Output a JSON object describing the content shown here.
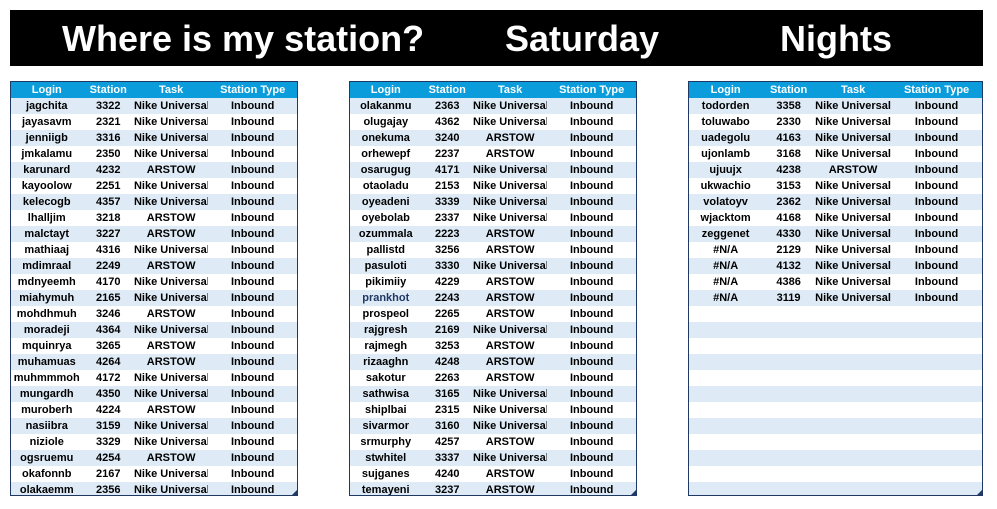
{
  "banner": {
    "title": "Where is my station?",
    "day": "Saturday",
    "shift": "Nights"
  },
  "columns": {
    "login": "Login",
    "station": "Station",
    "task": "Task",
    "type": "Station Type"
  },
  "tables": [
    {
      "rows": [
        [
          "jagchita",
          "3322",
          "Nike Universal",
          "Inbound"
        ],
        [
          "jayasavm",
          "2321",
          "Nike Universal",
          "Inbound"
        ],
        [
          "jenniigb",
          "3316",
          "Nike Universal",
          "Inbound"
        ],
        [
          "jmkalamu",
          "2350",
          "Nike Universal",
          "Inbound"
        ],
        [
          "karunard",
          "4232",
          "ARSTOW",
          "Inbound"
        ],
        [
          "kayoolow",
          "2251",
          "Nike Universal",
          "Inbound"
        ],
        [
          "kelecogb",
          "4357",
          "Nike Universal",
          "Inbound"
        ],
        [
          "lhalljim",
          "3218",
          "ARSTOW",
          "Inbound"
        ],
        [
          "malctayt",
          "3227",
          "ARSTOW",
          "Inbound"
        ],
        [
          "mathiaaj",
          "4316",
          "Nike Universal",
          "Inbound"
        ],
        [
          "mdimraal",
          "2249",
          "ARSTOW",
          "Inbound"
        ],
        [
          "mdnyeemh",
          "4170",
          "Nike Universal",
          "Inbound"
        ],
        [
          "miahymuh",
          "2165",
          "Nike Universal",
          "Inbound"
        ],
        [
          "mohdhmuh",
          "3246",
          "ARSTOW",
          "Inbound"
        ],
        [
          "moradeji",
          "4364",
          "Nike Universal",
          "Inbound"
        ],
        [
          "mquinrya",
          "3265",
          "ARSTOW",
          "Inbound"
        ],
        [
          "muhamuas",
          "4264",
          "ARSTOW",
          "Inbound"
        ],
        [
          "muhmmmoh",
          "4172",
          "Nike Universal",
          "Inbound"
        ],
        [
          "mungardh",
          "4350",
          "Nike Universal",
          "Inbound"
        ],
        [
          "muroberh",
          "4224",
          "ARSTOW",
          "Inbound"
        ],
        [
          "nasiibra",
          "3159",
          "Nike Universal",
          "Inbound"
        ],
        [
          "niziole",
          "3329",
          "Nike Universal",
          "Inbound"
        ],
        [
          "ogsruemu",
          "4254",
          "ARSTOW",
          "Inbound"
        ],
        [
          "okafonnb",
          "2167",
          "Nike Universal",
          "Inbound"
        ],
        [
          "olakaemm",
          "2356",
          "Nike Universal",
          "Inbound"
        ]
      ]
    },
    {
      "rows": [
        [
          "olakanmu",
          "2363",
          "Nike Universal",
          "Inbound"
        ],
        [
          "olugajay",
          "4362",
          "Nike Universal",
          "Inbound"
        ],
        [
          "onekuma",
          "3240",
          "ARSTOW",
          "Inbound"
        ],
        [
          "orhewepf",
          "2237",
          "ARSTOW",
          "Inbound"
        ],
        [
          "osarugug",
          "4171",
          "Nike Universal",
          "Inbound"
        ],
        [
          "otaoladu",
          "2153",
          "Nike Universal",
          "Inbound"
        ],
        [
          "oyeadeni",
          "3339",
          "Nike Universal",
          "Inbound"
        ],
        [
          "oyebolab",
          "2337",
          "Nike Universal",
          "Inbound"
        ],
        [
          "ozummala",
          "2223",
          "ARSTOW",
          "Inbound"
        ],
        [
          "pallistd",
          "3256",
          "ARSTOW",
          "Inbound"
        ],
        [
          "pasuloti",
          "3330",
          "Nike Universal",
          "Inbound"
        ],
        [
          "pikimiiy",
          "4229",
          "ARSTOW",
          "Inbound"
        ],
        [
          "prankhot",
          "2243",
          "ARSTOW",
          "Inbound"
        ],
        [
          "prospeol",
          "2265",
          "ARSTOW",
          "Inbound"
        ],
        [
          "rajgresh",
          "2169",
          "Nike Universal",
          "Inbound"
        ],
        [
          "rajmegh",
          "3253",
          "ARSTOW",
          "Inbound"
        ],
        [
          "rizaaghn",
          "4248",
          "ARSTOW",
          "Inbound"
        ],
        [
          "sakotur",
          "2263",
          "ARSTOW",
          "Inbound"
        ],
        [
          "sathwisa",
          "3165",
          "Nike Universal",
          "Inbound"
        ],
        [
          "shiplbai",
          "2315",
          "Nike Universal",
          "Inbound"
        ],
        [
          "sivarmor",
          "3160",
          "Nike Universal",
          "Inbound"
        ],
        [
          "srmurphy",
          "4257",
          "ARSTOW",
          "Inbound"
        ],
        [
          "stwhitel",
          "3337",
          "Nike Universal",
          "Inbound"
        ],
        [
          "sujganes",
          "4240",
          "ARSTOW",
          "Inbound"
        ],
        [
          "temayeni",
          "3237",
          "ARSTOW",
          "Inbound"
        ]
      ]
    },
    {
      "rows": [
        [
          "todorden",
          "3358",
          "Nike Universal",
          "Inbound"
        ],
        [
          "toluwabo",
          "2330",
          "Nike Universal",
          "Inbound"
        ],
        [
          "uadegolu",
          "4163",
          "Nike Universal",
          "Inbound"
        ],
        [
          "ujonlamb",
          "3168",
          "Nike Universal",
          "Inbound"
        ],
        [
          "ujuujx",
          "4238",
          "ARSTOW",
          "Inbound"
        ],
        [
          "ukwachio",
          "3153",
          "Nike Universal",
          "Inbound"
        ],
        [
          "volatoyv",
          "2362",
          "Nike Universal",
          "Inbound"
        ],
        [
          "wjacktom",
          "4168",
          "Nike Universal",
          "Inbound"
        ],
        [
          "zeggenet",
          "4330",
          "Nike Universal",
          "Inbound"
        ],
        [
          "#N/A",
          "2129",
          "Nike Universal",
          "Inbound"
        ],
        [
          "#N/A",
          "4132",
          "Nike Universal",
          "Inbound"
        ],
        [
          "#N/A",
          "4386",
          "Nike Universal",
          "Inbound"
        ],
        [
          "#N/A",
          "3119",
          "Nike Universal",
          "Inbound"
        ]
      ]
    }
  ]
}
